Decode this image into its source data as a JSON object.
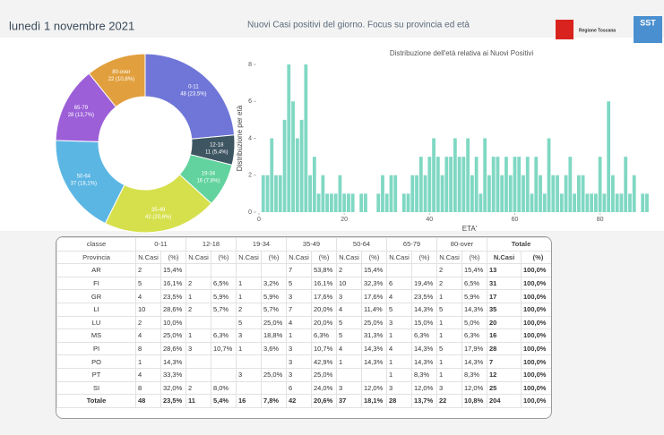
{
  "header": {
    "date": "lunedì 1 novembre 2021",
    "title": "Nuovi Casi positivi del giorno. Focus su provincia ed età",
    "logos": [
      "Regione Toscana",
      "SST"
    ]
  },
  "chart_data": [
    {
      "type": "pie",
      "donut": true,
      "categories": [
        "0-11",
        "12-18",
        "19-34",
        "35-49",
        "50-64",
        "65-79",
        "80-over"
      ],
      "values": [
        48,
        11,
        16,
        42,
        37,
        28,
        22
      ],
      "value_labels": [
        "48 (23,5%)",
        "11 (5,4%)",
        "16 (7,8%)",
        "42 (20,6%)",
        "37 (18,1%)",
        "28 (13,7%)",
        "22 (10,8%)"
      ],
      "colors": [
        "#6f76d8",
        "#3e5562",
        "#62d39e",
        "#d6e04c",
        "#5bb6e3",
        "#9c5fd8",
        "#e1a03d"
      ]
    },
    {
      "type": "bar",
      "title": "Distribuzione dell'età relativa ai Nuovi Positivi",
      "y_label": "Distribuzione per età",
      "x_label": "ETA'",
      "x": [
        0,
        1,
        2,
        3,
        4,
        5,
        6,
        7,
        8,
        9,
        10,
        11,
        12,
        13,
        14,
        15,
        16,
        17,
        18,
        19,
        20,
        21,
        22,
        23,
        24,
        25,
        26,
        27,
        28,
        29,
        30,
        31,
        32,
        33,
        34,
        35,
        36,
        37,
        38,
        39,
        40,
        41,
        42,
        43,
        44,
        45,
        46,
        47,
        48,
        49,
        50,
        51,
        52,
        53,
        54,
        55,
        56,
        57,
        58,
        59,
        60,
        61,
        62,
        63,
        64,
        65,
        66,
        67,
        68,
        69,
        70,
        71,
        72,
        73,
        74,
        75,
        76,
        77,
        78,
        79,
        80,
        81,
        82,
        83,
        84,
        85,
        86,
        87,
        88,
        89,
        90,
        91
      ],
      "values": [
        0,
        2,
        2,
        4,
        2,
        2,
        5,
        8,
        6,
        4,
        5,
        8,
        2,
        3,
        1,
        2,
        1,
        1,
        1,
        2,
        1,
        1,
        1,
        0,
        1,
        1,
        0,
        0,
        1,
        2,
        1,
        2,
        2,
        0,
        1,
        1,
        2,
        2,
        3,
        2,
        3,
        4,
        3,
        2,
        3,
        3,
        4,
        3,
        3,
        4,
        2,
        3,
        1,
        4,
        2,
        3,
        3,
        2,
        3,
        2,
        3,
        3,
        2,
        3,
        1,
        3,
        2,
        1,
        4,
        2,
        2,
        1,
        2,
        3,
        1,
        2,
        2,
        1,
        1,
        1,
        3,
        1,
        6,
        2,
        1,
        1,
        3,
        1,
        2,
        0,
        1,
        1
      ],
      "color": "#80d8c3",
      "xlim": [
        0,
        95
      ],
      "ylim": [
        0,
        8
      ],
      "xticks": [
        0,
        20,
        40,
        60,
        80
      ],
      "yticks": [
        0,
        2,
        4,
        6,
        8
      ]
    }
  ],
  "table": {
    "columns": [
      "classe",
      "0-11",
      "12-18",
      "19-34",
      "35-49",
      "50-64",
      "65-79",
      "80-over",
      "Totale"
    ],
    "subheader": [
      "Provincia",
      "N.Casi",
      "(%)"
    ],
    "rows": [
      [
        "AR",
        "2",
        "15,4%",
        null,
        null,
        null,
        null,
        "7",
        "53,8%",
        "2",
        "15,4%",
        null,
        null,
        "2",
        "15,4%",
        "13",
        "100,0%"
      ],
      [
        "FI",
        "5",
        "16,1%",
        "2",
        "6,5%",
        "1",
        "3,2%",
        "5",
        "16,1%",
        "10",
        "32,3%",
        "6",
        "19,4%",
        "2",
        "6,5%",
        "31",
        "100,0%"
      ],
      [
        "GR",
        "4",
        "23,5%",
        "1",
        "5,9%",
        "1",
        "5,9%",
        "3",
        "17,6%",
        "3",
        "17,6%",
        "4",
        "23,5%",
        "1",
        "5,9%",
        "17",
        "100,0%"
      ],
      [
        "LI",
        "10",
        "28,6%",
        "2",
        "5,7%",
        "2",
        "5,7%",
        "7",
        "20,0%",
        "4",
        "11,4%",
        "5",
        "14,3%",
        "5",
        "14,3%",
        "35",
        "100,0%"
      ],
      [
        "LU",
        "2",
        "10,0%",
        null,
        null,
        "5",
        "25,0%",
        "4",
        "20,0%",
        "5",
        "25,0%",
        "3",
        "15,0%",
        "1",
        "5,0%",
        "20",
        "100,0%"
      ],
      [
        "MS",
        "4",
        "25,0%",
        "1",
        "6,3%",
        "3",
        "18,8%",
        "1",
        "6,3%",
        "5",
        "31,3%",
        "1",
        "6,3%",
        "1",
        "6,3%",
        "16",
        "100,0%"
      ],
      [
        "PI",
        "8",
        "28,6%",
        "3",
        "10,7%",
        "1",
        "3,6%",
        "3",
        "10,7%",
        "4",
        "14,3%",
        "4",
        "14,3%",
        "5",
        "17,9%",
        "28",
        "100,0%"
      ],
      [
        "PO",
        "1",
        "14,3%",
        null,
        null,
        null,
        null,
        "3",
        "42,9%",
        "1",
        "14,3%",
        "1",
        "14,3%",
        "1",
        "14,3%",
        "7",
        "100,0%"
      ],
      [
        "PT",
        "4",
        "33,3%",
        null,
        null,
        "3",
        "25,0%",
        "3",
        "25,0%",
        null,
        null,
        "1",
        "8,3%",
        "1",
        "8,3%",
        "12",
        "100,0%"
      ],
      [
        "SI",
        "8",
        "32,0%",
        "2",
        "8,0%",
        null,
        null,
        "6",
        "24,0%",
        "3",
        "12,0%",
        "3",
        "12,0%",
        "3",
        "12,0%",
        "25",
        "100,0%"
      ],
      [
        "Totale",
        "48",
        "23,5%",
        "11",
        "5,4%",
        "16",
        "7,8%",
        "42",
        "20,6%",
        "37",
        "18,1%",
        "28",
        "13,7%",
        "22",
        "10,8%",
        "204",
        "100,0%"
      ]
    ]
  }
}
